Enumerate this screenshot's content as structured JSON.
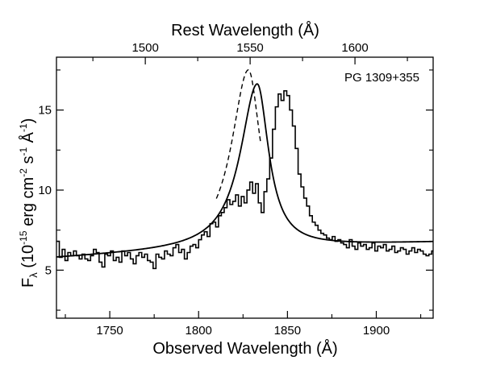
{
  "chart_data": {
    "type": "line",
    "label": "PG 1309+355",
    "xlabel_bottom": "Observed Wavelength (Å)",
    "xlabel_top": "Rest Wavelength (Å)",
    "ylabel": {
      "symbol": "F",
      "subscript": "λ",
      "open": " (10",
      "exp1": "-15",
      "unit1": " erg cm",
      "exp2": "-2",
      "unit2": " s",
      "exp3": "-1",
      "unit3": " Å",
      "exp4": "-1",
      "close": ")"
    },
    "xlim": [
      1720,
      1932
    ],
    "ylim": [
      2.0,
      18.3
    ],
    "x_ticks": [
      1750,
      1800,
      1850,
      1900
    ],
    "y_ticks": [
      5,
      10,
      15
    ],
    "top_axis": {
      "redshift": 0.18,
      "ticks": [
        1500,
        1550,
        1600
      ]
    },
    "series": [
      {
        "style": "step",
        "x_start": 1720,
        "x_step": 1.6,
        "values": [
          6.8,
          5.8,
          6.3,
          5.6,
          6.1,
          5.9,
          6.2,
          5.9,
          5.7,
          6.0,
          5.7,
          5.6,
          5.9,
          6.3,
          6.1,
          5.5,
          5.2,
          6.0,
          5.9,
          6.2,
          5.6,
          5.8,
          5.5,
          6.2,
          5.9,
          6.1,
          5.7,
          5.4,
          5.9,
          6.1,
          5.8,
          6.0,
          5.6,
          5.5,
          5.1,
          6.0,
          5.8,
          5.7,
          6.2,
          6.0,
          5.9,
          6.4,
          6.6,
          6.1,
          6.3,
          5.7,
          6.1,
          6.5,
          6.6,
          6.4,
          6.9,
          7.2,
          7.4,
          7.1,
          7.9,
          8.0,
          7.7,
          8.4,
          8.6,
          8.9,
          9.4,
          9.1,
          9.3,
          9.7,
          9.0,
          9.6,
          9.2,
          10.0,
          10.5,
          9.8,
          10.4,
          9.2,
          8.6,
          9.9,
          10.7,
          12.0,
          13.8,
          15.2,
          16.0,
          15.6,
          16.2,
          15.9,
          15.0,
          14.0,
          12.6,
          11.0,
          10.2,
          9.5,
          9.0,
          8.4,
          8.0,
          7.8,
          7.5,
          7.3,
          7.2,
          7.0,
          6.9,
          7.1,
          6.8,
          6.9,
          6.7,
          6.6,
          6.4,
          6.9,
          6.5,
          6.3,
          6.7,
          6.5,
          6.6,
          6.3,
          6.4,
          6.7,
          6.2,
          6.5,
          6.4,
          6.6,
          6.2,
          6.3,
          6.5,
          6.1,
          6.2,
          6.4,
          6.3,
          6.0,
          6.2,
          6.4,
          6.1,
          6.3,
          6.2,
          6.0,
          5.9,
          6.0,
          6.2
        ]
      },
      {
        "style": "solid",
        "model": {
          "continuum_a": 5.72,
          "continuum_b": 0.0062,
          "continuum_c": 6.8e-06,
          "x0": 1720,
          "peak": 10.3,
          "center": 1833.0,
          "sigma_blue": 11.5,
          "sigma_red": 7.8
        }
      },
      {
        "style": "dashed",
        "model": {
          "continuum_a": 5.72,
          "continuum_b": 0.0062,
          "continuum_c": 6.8e-06,
          "x0": 1720,
          "peak": 11.2,
          "center": 1828.0,
          "sigma_blue": 11.5,
          "sigma_red": 8.3,
          "x_range": [
            1810,
            1835
          ]
        }
      }
    ],
    "grid": false,
    "legend": "none"
  }
}
